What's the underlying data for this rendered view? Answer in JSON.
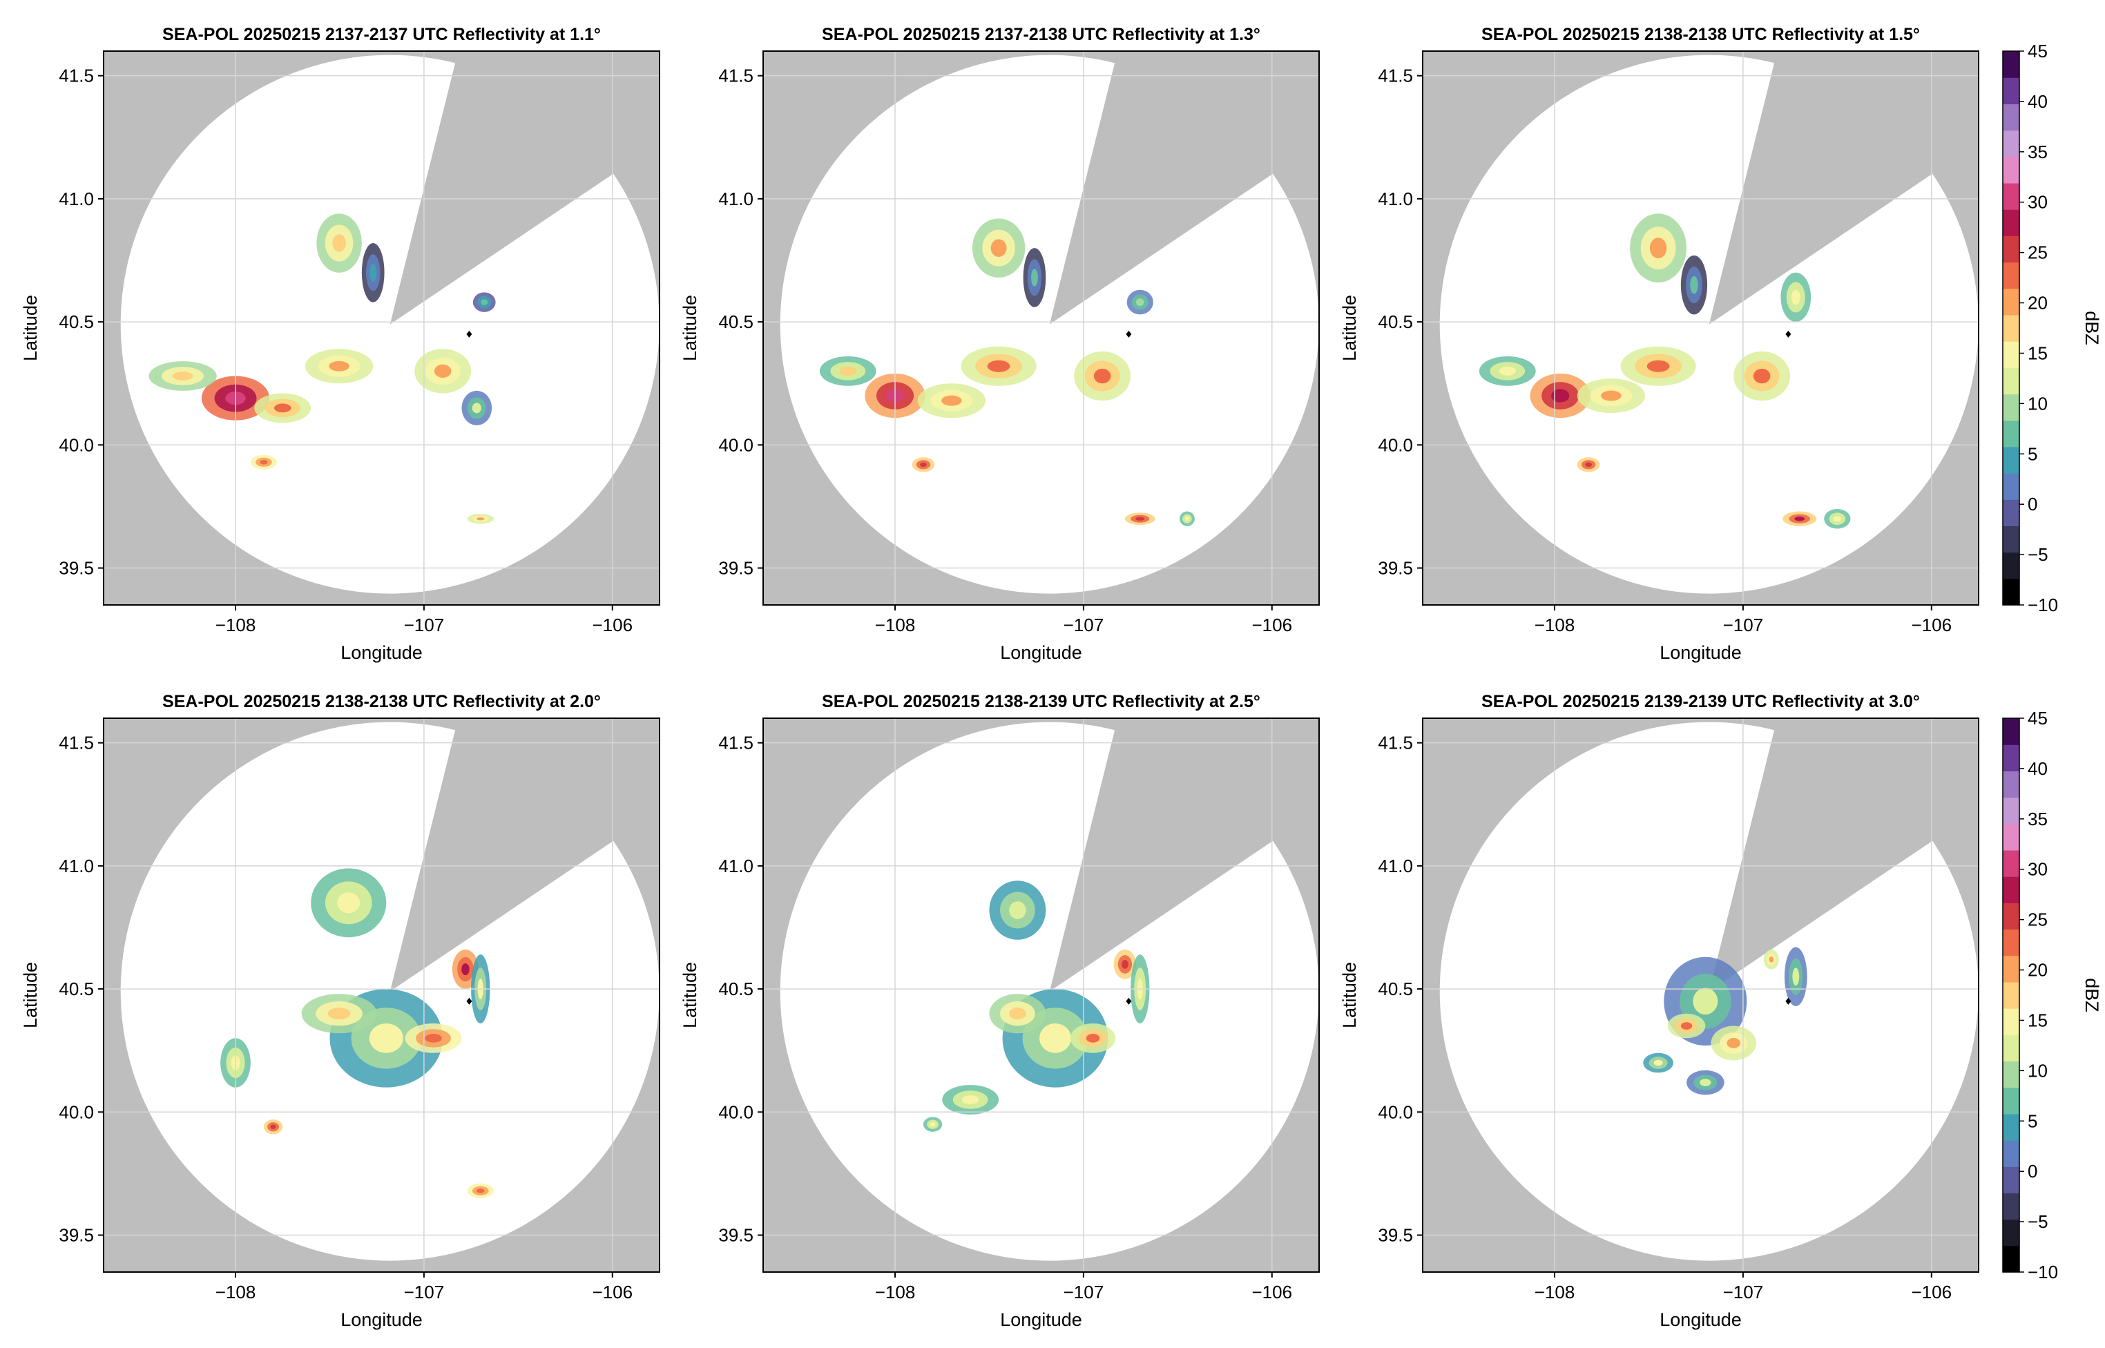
{
  "chart_data": [
    {
      "type": "heatmap",
      "title": "SEA-POL 20250215 2137-2137 UTC Reflectivity at 1.1°",
      "xlabel": "Longitude",
      "ylabel": "Latitude",
      "xlim": [
        -108.7,
        -105.75
      ],
      "ylim": [
        39.35,
        41.6
      ],
      "xticks": [
        "−108",
        "−107",
        "−106"
      ],
      "yticks": [
        "39.5",
        "40.0",
        "40.5",
        "41.0",
        "41.5"
      ],
      "grid": true,
      "radar_center": [
        -107.18,
        40.49
      ],
      "marker": [
        -106.76,
        40.45
      ],
      "cells": [
        {
          "lon": -108.0,
          "lat": 40.19,
          "dbz": 31,
          "rx": 0.18,
          "ry": 0.09
        },
        {
          "lon": -108.28,
          "lat": 40.28,
          "dbz": 18,
          "rx": 0.18,
          "ry": 0.06
        },
        {
          "lon": -107.75,
          "lat": 40.15,
          "dbz": 22,
          "rx": 0.15,
          "ry": 0.06
        },
        {
          "lon": -107.85,
          "lat": 39.93,
          "dbz": 24,
          "rx": 0.07,
          "ry": 0.03
        },
        {
          "lon": -107.45,
          "lat": 40.82,
          "dbz": 18,
          "rx": 0.12,
          "ry": 0.12
        },
        {
          "lon": -107.27,
          "lat": 40.7,
          "dbz": 5,
          "rx": 0.06,
          "ry": 0.12
        },
        {
          "lon": -107.45,
          "lat": 40.32,
          "dbz": 20,
          "rx": 0.18,
          "ry": 0.07
        },
        {
          "lon": -106.9,
          "lat": 40.3,
          "dbz": 20,
          "rx": 0.15,
          "ry": 0.09
        },
        {
          "lon": -106.72,
          "lat": 40.15,
          "dbz": 12,
          "rx": 0.08,
          "ry": 0.07
        },
        {
          "lon": -106.68,
          "lat": 40.58,
          "dbz": 8,
          "rx": 0.06,
          "ry": 0.04
        },
        {
          "lon": -106.7,
          "lat": 39.7,
          "dbz": 20,
          "rx": 0.07,
          "ry": 0.02
        }
      ]
    },
    {
      "type": "heatmap",
      "title": "SEA-POL 20250215 2137-2138 UTC Reflectivity at 1.3°",
      "xlabel": "Longitude",
      "ylabel": "Latitude",
      "xlim": [
        -108.7,
        -105.75
      ],
      "ylim": [
        39.35,
        41.6
      ],
      "xticks": [
        "−108",
        "−107",
        "−106"
      ],
      "yticks": [
        "39.5",
        "40.0",
        "40.5",
        "41.0",
        "41.5"
      ],
      "grid": true,
      "radar_center": [
        -107.18,
        40.49
      ],
      "marker": [
        -106.76,
        40.45
      ],
      "cells": [
        {
          "lon": -108.0,
          "lat": 40.2,
          "dbz": 30,
          "rx": 0.16,
          "ry": 0.09
        },
        {
          "lon": -108.25,
          "lat": 40.3,
          "dbz": 17,
          "rx": 0.15,
          "ry": 0.06
        },
        {
          "lon": -107.7,
          "lat": 40.18,
          "dbz": 20,
          "rx": 0.18,
          "ry": 0.07
        },
        {
          "lon": -107.85,
          "lat": 39.92,
          "dbz": 26,
          "rx": 0.06,
          "ry": 0.03
        },
        {
          "lon": -107.45,
          "lat": 40.8,
          "dbz": 19,
          "rx": 0.14,
          "ry": 0.12
        },
        {
          "lon": -107.26,
          "lat": 40.68,
          "dbz": 6,
          "rx": 0.06,
          "ry": 0.12
        },
        {
          "lon": -107.45,
          "lat": 40.32,
          "dbz": 22,
          "rx": 0.2,
          "ry": 0.08
        },
        {
          "lon": -106.9,
          "lat": 40.28,
          "dbz": 22,
          "rx": 0.15,
          "ry": 0.1
        },
        {
          "lon": -106.7,
          "lat": 40.58,
          "dbz": 10,
          "rx": 0.07,
          "ry": 0.05
        },
        {
          "lon": -106.7,
          "lat": 39.7,
          "dbz": 26,
          "rx": 0.08,
          "ry": 0.025
        },
        {
          "lon": -106.45,
          "lat": 39.7,
          "dbz": 16,
          "rx": 0.04,
          "ry": 0.03
        }
      ]
    },
    {
      "type": "heatmap",
      "title": "SEA-POL 20250215 2138-2138 UTC Reflectivity at 1.5°",
      "xlabel": "Longitude",
      "ylabel": "Latitude",
      "xlim": [
        -108.7,
        -105.75
      ],
      "ylim": [
        39.35,
        41.6
      ],
      "xticks": [
        "−108",
        "−107",
        "−106"
      ],
      "yticks": [
        "39.5",
        "40.0",
        "40.5",
        "41.0",
        "41.5"
      ],
      "grid": true,
      "radar_center": [
        -107.18,
        40.49
      ],
      "marker": [
        -106.76,
        40.45
      ],
      "cells": [
        {
          "lon": -107.97,
          "lat": 40.2,
          "dbz": 29,
          "rx": 0.16,
          "ry": 0.09
        },
        {
          "lon": -108.25,
          "lat": 40.3,
          "dbz": 16,
          "rx": 0.15,
          "ry": 0.06
        },
        {
          "lon": -107.7,
          "lat": 40.2,
          "dbz": 20,
          "rx": 0.18,
          "ry": 0.07
        },
        {
          "lon": -107.82,
          "lat": 39.92,
          "dbz": 26,
          "rx": 0.06,
          "ry": 0.03
        },
        {
          "lon": -107.45,
          "lat": 40.8,
          "dbz": 19,
          "rx": 0.15,
          "ry": 0.14
        },
        {
          "lon": -107.26,
          "lat": 40.65,
          "dbz": 6,
          "rx": 0.07,
          "ry": 0.12
        },
        {
          "lon": -107.45,
          "lat": 40.32,
          "dbz": 22,
          "rx": 0.2,
          "ry": 0.08
        },
        {
          "lon": -106.9,
          "lat": 40.28,
          "dbz": 22,
          "rx": 0.15,
          "ry": 0.1
        },
        {
          "lon": -106.72,
          "lat": 40.6,
          "dbz": 16,
          "rx": 0.08,
          "ry": 0.1
        },
        {
          "lon": -106.7,
          "lat": 39.7,
          "dbz": 27,
          "rx": 0.09,
          "ry": 0.03
        },
        {
          "lon": -106.5,
          "lat": 39.7,
          "dbz": 16,
          "rx": 0.07,
          "ry": 0.04
        }
      ]
    },
    {
      "type": "heatmap",
      "title": "SEA-POL 20250215 2138-2138 UTC Reflectivity at 2.0°",
      "xlabel": "Longitude",
      "ylabel": "Latitude",
      "xlim": [
        -108.7,
        -105.75
      ],
      "ylim": [
        39.35,
        41.6
      ],
      "xticks": [
        "−108",
        "−107",
        "−106"
      ],
      "yticks": [
        "39.5",
        "40.0",
        "40.5",
        "41.0",
        "41.5"
      ],
      "grid": true,
      "radar_center": [
        -107.18,
        40.49
      ],
      "marker": [
        -106.76,
        40.45
      ],
      "cells": [
        {
          "lon": -107.4,
          "lat": 40.85,
          "dbz": 15,
          "rx": 0.2,
          "ry": 0.14
        },
        {
          "lon": -107.2,
          "lat": 40.3,
          "dbz": 14,
          "rx": 0.3,
          "ry": 0.2
        },
        {
          "lon": -106.95,
          "lat": 40.3,
          "dbz": 24,
          "rx": 0.15,
          "ry": 0.06
        },
        {
          "lon": -107.45,
          "lat": 40.4,
          "dbz": 18,
          "rx": 0.2,
          "ry": 0.08
        },
        {
          "lon": -106.78,
          "lat": 40.58,
          "dbz": 28,
          "rx": 0.07,
          "ry": 0.08
        },
        {
          "lon": -106.7,
          "lat": 40.5,
          "dbz": 14,
          "rx": 0.05,
          "ry": 0.14
        },
        {
          "lon": -108.0,
          "lat": 40.2,
          "dbz": 16,
          "rx": 0.08,
          "ry": 0.1
        },
        {
          "lon": -107.8,
          "lat": 39.94,
          "dbz": 26,
          "rx": 0.05,
          "ry": 0.03
        },
        {
          "lon": -106.7,
          "lat": 39.68,
          "dbz": 24,
          "rx": 0.07,
          "ry": 0.03
        }
      ]
    },
    {
      "type": "heatmap",
      "title": "SEA-POL 20250215 2138-2139 UTC Reflectivity at 2.5°",
      "xlabel": "Longitude",
      "ylabel": "Latitude",
      "xlim": [
        -108.7,
        -105.75
      ],
      "ylim": [
        39.35,
        41.6
      ],
      "xticks": [
        "−108",
        "−107",
        "−106"
      ],
      "yticks": [
        "39.5",
        "40.0",
        "40.5",
        "41.0",
        "41.5"
      ],
      "grid": true,
      "radar_center": [
        -107.18,
        40.49
      ],
      "marker": [
        -106.76,
        40.45
      ],
      "cells": [
        {
          "lon": -107.35,
          "lat": 40.82,
          "dbz": 13,
          "rx": 0.15,
          "ry": 0.12
        },
        {
          "lon": -107.15,
          "lat": 40.3,
          "dbz": 14,
          "rx": 0.28,
          "ry": 0.2
        },
        {
          "lon": -106.95,
          "lat": 40.3,
          "dbz": 22,
          "rx": 0.12,
          "ry": 0.06
        },
        {
          "lon": -107.35,
          "lat": 40.4,
          "dbz": 18,
          "rx": 0.15,
          "ry": 0.08
        },
        {
          "lon": -106.78,
          "lat": 40.6,
          "dbz": 26,
          "rx": 0.06,
          "ry": 0.06
        },
        {
          "lon": -106.7,
          "lat": 40.5,
          "dbz": 16,
          "rx": 0.05,
          "ry": 0.14
        },
        {
          "lon": -107.6,
          "lat": 40.05,
          "dbz": 15,
          "rx": 0.15,
          "ry": 0.06
        },
        {
          "lon": -107.8,
          "lat": 39.95,
          "dbz": 16,
          "rx": 0.05,
          "ry": 0.03
        }
      ]
    },
    {
      "type": "heatmap",
      "title": "SEA-POL 20250215 2139-2139 UTC Reflectivity at 3.0°",
      "xlabel": "Longitude",
      "ylabel": "Latitude",
      "xlim": [
        -108.7,
        -105.75
      ],
      "ylim": [
        39.35,
        41.6
      ],
      "xticks": [
        "−108",
        "−107",
        "−106"
      ],
      "yticks": [
        "39.5",
        "40.0",
        "40.5",
        "41.0",
        "41.5"
      ],
      "grid": true,
      "radar_center": [
        -107.18,
        40.49
      ],
      "marker": [
        -106.76,
        40.45
      ],
      "cells": [
        {
          "lon": -107.2,
          "lat": 40.45,
          "dbz": 12,
          "rx": 0.22,
          "ry": 0.18
        },
        {
          "lon": -107.05,
          "lat": 40.28,
          "dbz": 20,
          "rx": 0.12,
          "ry": 0.07
        },
        {
          "lon": -107.3,
          "lat": 40.35,
          "dbz": 22,
          "rx": 0.1,
          "ry": 0.05
        },
        {
          "lon": -106.72,
          "lat": 40.55,
          "dbz": 12,
          "rx": 0.06,
          "ry": 0.12
        },
        {
          "lon": -106.85,
          "lat": 40.62,
          "dbz": 20,
          "rx": 0.04,
          "ry": 0.04
        },
        {
          "lon": -107.2,
          "lat": 40.12,
          "dbz": 12,
          "rx": 0.1,
          "ry": 0.05
        },
        {
          "lon": -107.45,
          "lat": 40.2,
          "dbz": 14,
          "rx": 0.08,
          "ry": 0.04
        }
      ]
    }
  ],
  "colorbar": {
    "label": "dBZ",
    "ticks": [
      "45",
      "40",
      "35",
      "30",
      "25",
      "20",
      "15",
      "10",
      "5",
      "0",
      "−5",
      "−10"
    ],
    "range": [
      -10,
      45
    ],
    "colors": [
      "#000000",
      "#1b1b2a",
      "#3a3a5c",
      "#5b5a9c",
      "#5f7fc0",
      "#3f9fb3",
      "#68c0a0",
      "#a6d99f",
      "#dcef9a",
      "#f8f4a5",
      "#fdd17d",
      "#f9a25c",
      "#ee6a46",
      "#d23a42",
      "#b0164c",
      "#d43f7c",
      "#e48ac5",
      "#c49ad6",
      "#9b76c1",
      "#6a3a97",
      "#3f0a55"
    ]
  },
  "colors": {
    "background_gray": "#bebebe",
    "coverage": "#ffffff",
    "grid": "#d6d6d6"
  }
}
